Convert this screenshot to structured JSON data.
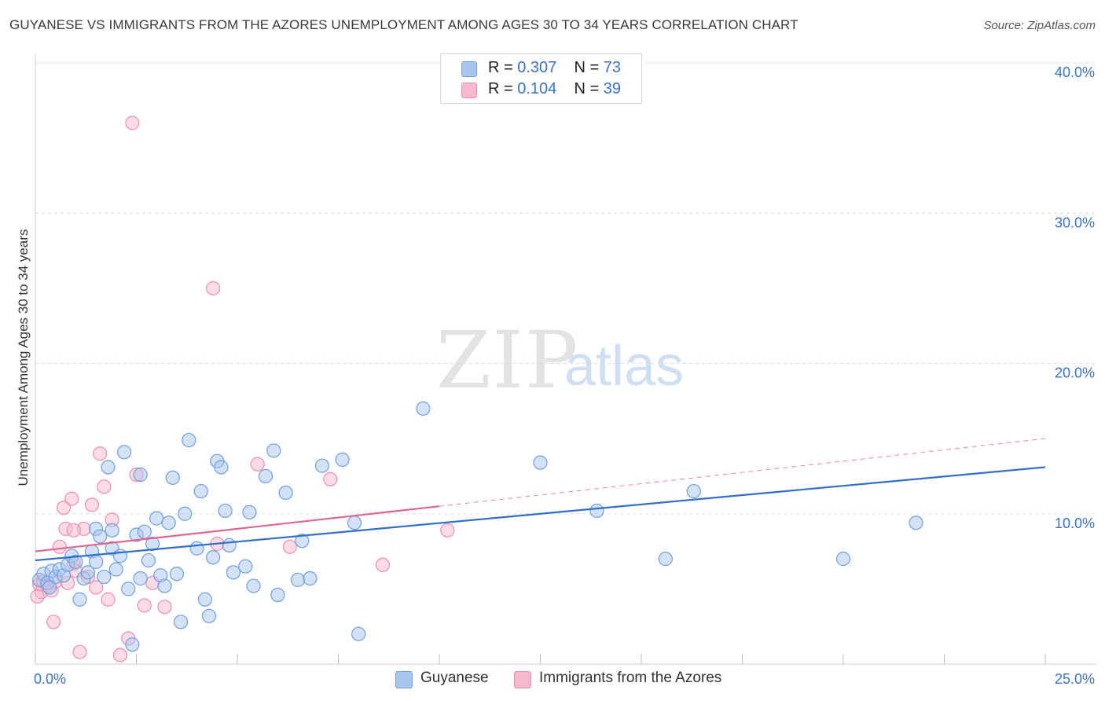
{
  "header": {
    "title": "GUYANESE VS IMMIGRANTS FROM THE AZORES UNEMPLOYMENT AMONG AGES 30 TO 34 YEARS CORRELATION CHART",
    "source": "Source: ZipAtlas.com"
  },
  "watermark": {
    "zip": "ZIP",
    "atlas": "atlas"
  },
  "legend": {
    "series": [
      {
        "r_label": "R = ",
        "r_value": "0.307",
        "n_label": "N = ",
        "n_value": "73",
        "color": "#a9c6ee"
      },
      {
        "r_label": "R = ",
        "r_value": "0.104",
        "n_label": "N = ",
        "n_value": "39",
        "color": "#f7b8cb"
      }
    ]
  },
  "bottom_legend": [
    "Guyanese",
    "Immigrants from the Azores"
  ],
  "chart_data": {
    "type": "scatter",
    "title": "GUYANESE VS IMMIGRANTS FROM THE AZORES UNEMPLOYMENT AMONG AGES 30 TO 34 YEARS CORRELATION CHART",
    "xlabel": "",
    "ylabel": "Unemployment Among Ages 30 to 34 years",
    "xlim": [
      0,
      25
    ],
    "ylim": [
      0,
      40
    ],
    "x_tick_labels": [
      "0.0%",
      "25.0%"
    ],
    "y_ticks": [
      10,
      20,
      30,
      40
    ],
    "y_tick_labels": [
      "10.0%",
      "20.0%",
      "30.0%",
      "40.0%"
    ],
    "colors": {
      "blue_fill": "#a9c6ee",
      "blue_stroke": "#6f9fde",
      "blue_line": "#2f6fcc",
      "pink_fill": "#f7b8cb",
      "pink_stroke": "#ec8fad",
      "pink_line": "#e0668f",
      "axis_text": "#3a72c6",
      "grid": "#dcdcdc"
    },
    "series": [
      {
        "name": "Guyanese",
        "r": 0.307,
        "n": 73,
        "trend": {
          "x": [
            0,
            25
          ],
          "y": [
            6.9,
            13.1
          ]
        },
        "points": [
          [
            0.1,
            5.6
          ],
          [
            0.2,
            6.0
          ],
          [
            0.3,
            5.4
          ],
          [
            0.4,
            6.2
          ],
          [
            0.5,
            5.8
          ],
          [
            0.6,
            6.3
          ],
          [
            0.7,
            5.9
          ],
          [
            0.8,
            6.6
          ],
          [
            0.9,
            7.2
          ],
          [
            1.0,
            6.8
          ],
          [
            1.1,
            4.3
          ],
          [
            1.2,
            5.7
          ],
          [
            1.3,
            6.1
          ],
          [
            1.4,
            7.5
          ],
          [
            1.5,
            6.8
          ],
          [
            1.5,
            9.0
          ],
          [
            1.6,
            8.5
          ],
          [
            1.7,
            5.8
          ],
          [
            1.8,
            13.1
          ],
          [
            1.9,
            7.7
          ],
          [
            1.9,
            8.9
          ],
          [
            2.0,
            6.3
          ],
          [
            2.1,
            7.2
          ],
          [
            2.2,
            14.1
          ],
          [
            2.3,
            5.0
          ],
          [
            2.4,
            1.3
          ],
          [
            2.5,
            8.6
          ],
          [
            2.6,
            5.7
          ],
          [
            2.6,
            12.6
          ],
          [
            2.7,
            8.8
          ],
          [
            2.8,
            6.9
          ],
          [
            2.9,
            8.0
          ],
          [
            3.0,
            9.7
          ],
          [
            3.1,
            5.9
          ],
          [
            3.2,
            5.2
          ],
          [
            3.3,
            9.4
          ],
          [
            3.4,
            12.4
          ],
          [
            3.5,
            6.0
          ],
          [
            3.6,
            2.8
          ],
          [
            3.7,
            10.0
          ],
          [
            3.8,
            14.9
          ],
          [
            4.0,
            7.7
          ],
          [
            4.1,
            11.5
          ],
          [
            4.2,
            4.3
          ],
          [
            4.3,
            3.2
          ],
          [
            4.4,
            7.1
          ],
          [
            4.5,
            13.5
          ],
          [
            4.6,
            13.1
          ],
          [
            4.7,
            10.2
          ],
          [
            4.8,
            7.9
          ],
          [
            4.9,
            6.1
          ],
          [
            5.2,
            6.5
          ],
          [
            5.3,
            10.1
          ],
          [
            5.4,
            5.2
          ],
          [
            5.7,
            12.5
          ],
          [
            5.9,
            14.2
          ],
          [
            6.0,
            4.6
          ],
          [
            6.2,
            11.4
          ],
          [
            6.5,
            5.6
          ],
          [
            6.6,
            8.2
          ],
          [
            6.8,
            5.7
          ],
          [
            7.1,
            13.2
          ],
          [
            7.6,
            13.6
          ],
          [
            7.9,
            9.4
          ],
          [
            8.0,
            2.0
          ],
          [
            9.6,
            17.0
          ],
          [
            12.5,
            13.4
          ],
          [
            13.9,
            10.2
          ],
          [
            15.6,
            7.0
          ],
          [
            16.3,
            11.5
          ],
          [
            20.0,
            7.0
          ],
          [
            21.8,
            9.4
          ],
          [
            0.35,
            5.1
          ]
        ]
      },
      {
        "name": "Immigrants from the Azores",
        "r": 0.104,
        "n": 39,
        "trend": {
          "x": [
            0,
            10
          ],
          "y": [
            7.5,
            10.5
          ]
        },
        "trend_dashed": {
          "x": [
            10,
            25
          ],
          "y": [
            10.5,
            15.0
          ]
        },
        "points": [
          [
            0.1,
            5.3
          ],
          [
            0.15,
            4.8
          ],
          [
            0.2,
            5.5
          ],
          [
            0.3,
            5.2
          ],
          [
            0.4,
            4.9
          ],
          [
            0.45,
            2.8
          ],
          [
            0.5,
            5.5
          ],
          [
            0.6,
            7.8
          ],
          [
            0.7,
            10.4
          ],
          [
            0.75,
            9.0
          ],
          [
            0.8,
            5.4
          ],
          [
            0.9,
            11.0
          ],
          [
            0.95,
            6.7
          ],
          [
            1.0,
            6.2
          ],
          [
            1.1,
            0.8
          ],
          [
            1.2,
            9.0
          ],
          [
            1.3,
            5.8
          ],
          [
            1.4,
            10.6
          ],
          [
            1.5,
            5.1
          ],
          [
            1.6,
            14.0
          ],
          [
            1.7,
            11.8
          ],
          [
            1.8,
            4.3
          ],
          [
            1.9,
            9.6
          ],
          [
            2.1,
            0.6
          ],
          [
            2.3,
            1.7
          ],
          [
            2.4,
            36.0
          ],
          [
            2.5,
            12.6
          ],
          [
            2.7,
            3.9
          ],
          [
            2.9,
            5.4
          ],
          [
            3.2,
            3.8
          ],
          [
            4.4,
            25.0
          ],
          [
            4.5,
            8.0
          ],
          [
            5.5,
            13.3
          ],
          [
            6.3,
            7.8
          ],
          [
            7.3,
            12.3
          ],
          [
            8.6,
            6.6
          ],
          [
            10.2,
            8.9
          ],
          [
            0.05,
            4.5
          ],
          [
            0.95,
            8.9
          ]
        ]
      }
    ]
  }
}
